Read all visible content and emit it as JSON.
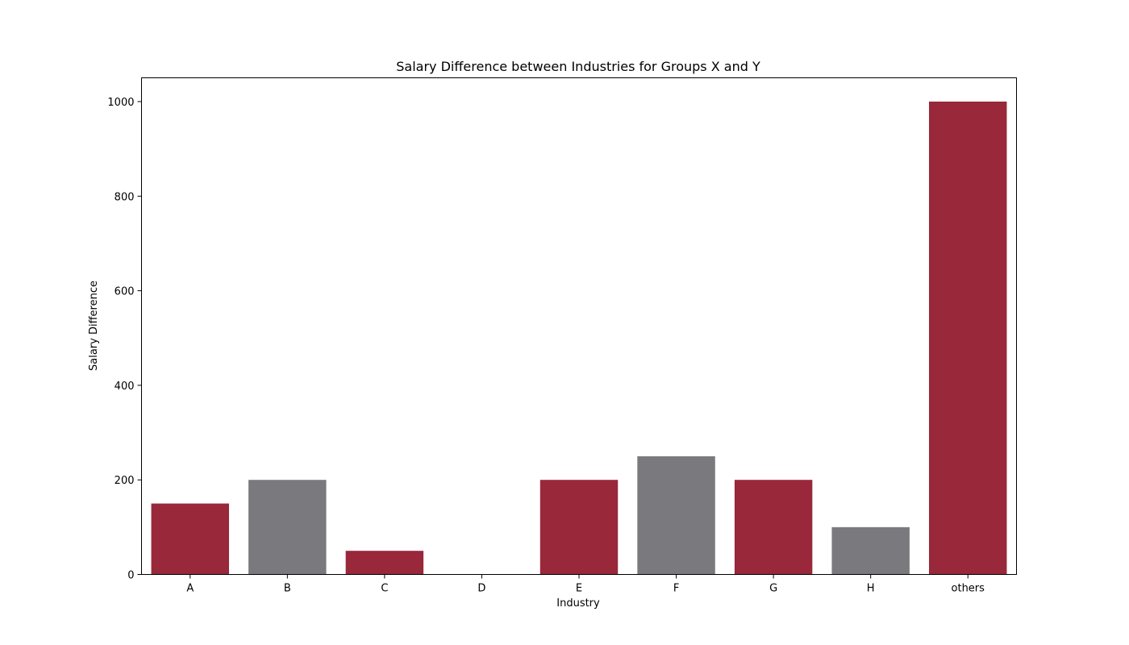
{
  "chart_data": {
    "type": "bar",
    "title": "Salary Difference between Industries for Groups X and Y",
    "xlabel": "Industry",
    "ylabel": "Salary Difference",
    "categories": [
      "A",
      "B",
      "C",
      "D",
      "E",
      "F",
      "G",
      "H",
      "others"
    ],
    "values": [
      150,
      200,
      50,
      0,
      200,
      250,
      200,
      100,
      1000
    ],
    "bar_colors": [
      "#98283a",
      "#7a797e",
      "#98283a",
      "#7a797e",
      "#98283a",
      "#7a797e",
      "#98283a",
      "#7a797e",
      "#98283a"
    ],
    "ylim": [
      0,
      1050
    ],
    "yticks": [
      0,
      200,
      400,
      600,
      800,
      1000
    ],
    "grid": false,
    "legend": false
  }
}
